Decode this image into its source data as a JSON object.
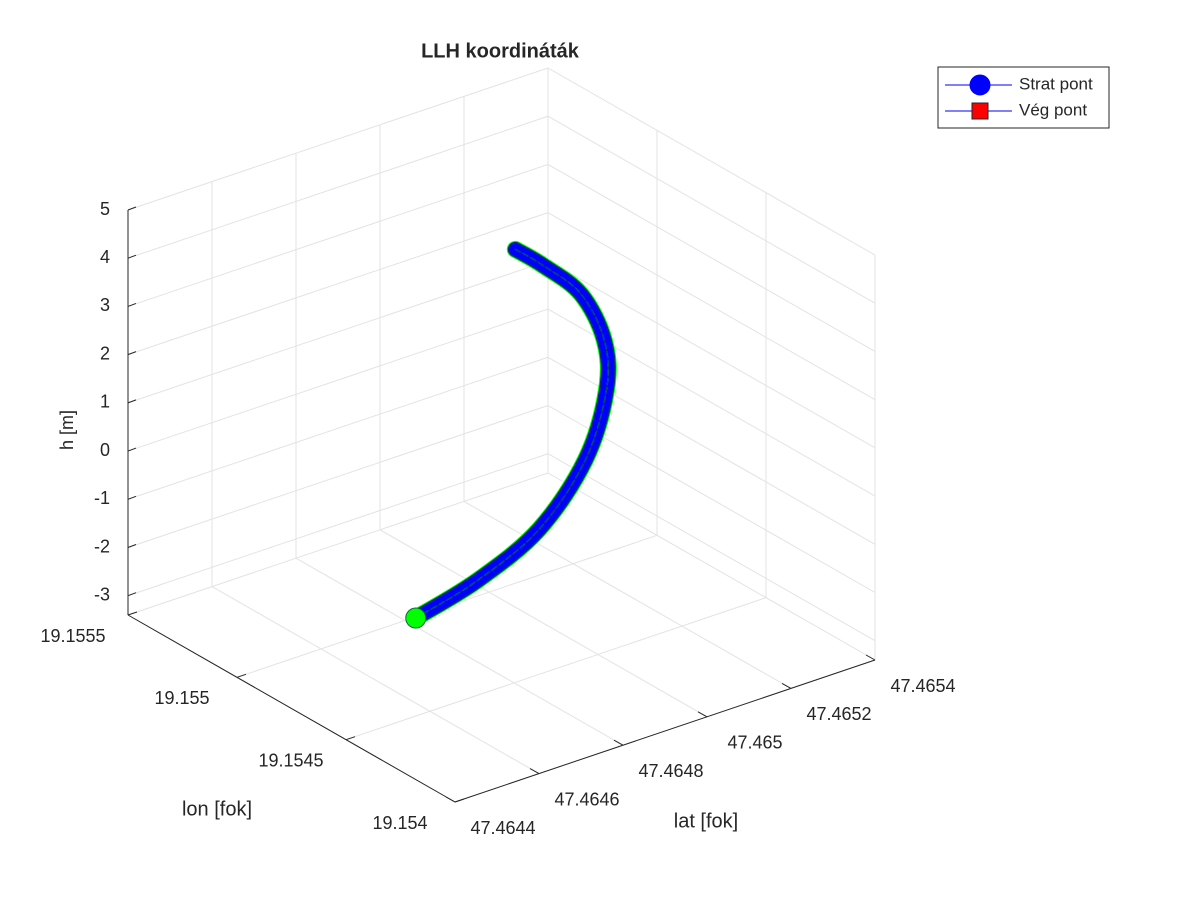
{
  "chart_data": {
    "type": "line3d",
    "title": "LLH koordináták",
    "xlabel": "lat [fok]",
    "ylabel": "lon [fok]",
    "zlabel": "h [m]",
    "x": [
      47.46481,
      47.4649,
      47.465,
      47.4651,
      47.46515,
      47.46515,
      47.46511,
      47.46504,
      47.46499
    ],
    "y": [
      19.15497,
      19.15486,
      19.15477,
      19.15475,
      19.15475,
      19.15476,
      19.15479,
      19.15483,
      19.15486
    ],
    "z": [
      -3.3,
      -2.5,
      -1.5,
      -0.3,
      1,
      2,
      3,
      3.7,
      4.1
    ],
    "color": "#0000ff",
    "edge_color": "#00ff00",
    "xlim": [
      47.4644,
      47.4654
    ],
    "xticks": [
      47.4644,
      47.4646,
      47.4648,
      47.465,
      47.4652,
      47.4654
    ],
    "ylim": [
      19.154,
      19.1555
    ],
    "yticks": [
      19.154,
      19.1545,
      19.155,
      19.1555
    ],
    "zlim": [
      -3.4,
      5
    ],
    "zticks": [
      -3,
      -2,
      -1,
      0,
      1,
      2,
      3,
      4,
      5
    ],
    "grid": true,
    "legend_loc": "northeast",
    "legend": [
      {
        "name": "Strat pont",
        "color": "#0000ff",
        "marker": "circle"
      },
      {
        "name": "Vég pont",
        "color": "#ff0000",
        "marker": "square"
      }
    ]
  }
}
